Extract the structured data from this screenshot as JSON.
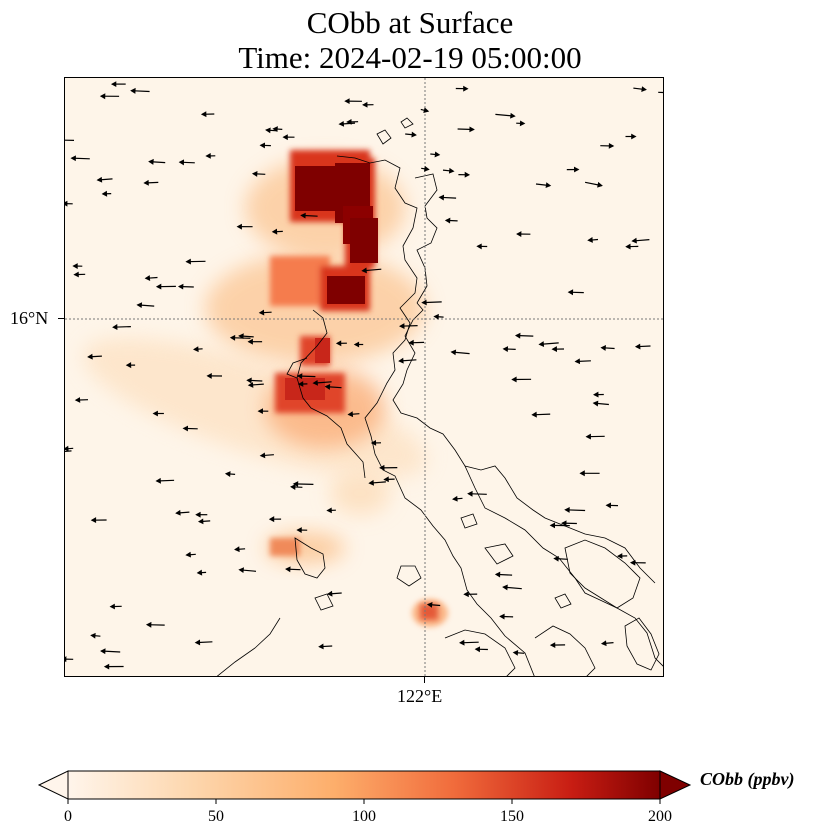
{
  "title": {
    "line1": "CObb at Surface",
    "line2": "Time: 2024-02-19 05:00:00"
  },
  "map": {
    "lat_label": "16°N",
    "lon_label": "122°E",
    "gridline_color": "#777777"
  },
  "colorbar": {
    "label": "CObb (ppbv)",
    "ticks": [
      "0",
      "50",
      "100",
      "150",
      "200"
    ],
    "min": 0,
    "max": 200,
    "extend": "both",
    "colors": [
      "#fff5eb",
      "#fdd8b0",
      "#fdae6b",
      "#f16c3c",
      "#c81d13",
      "#7f0000"
    ]
  }
}
